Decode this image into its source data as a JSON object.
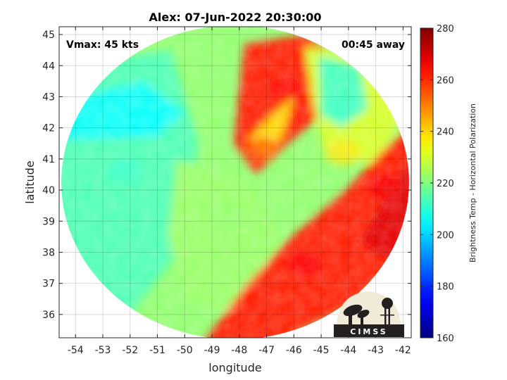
{
  "chart_data": {
    "type": "heatmap",
    "title": "Alex: 07-Jun-2022 20:30:00",
    "xlabel": "longitude",
    "ylabel": "latitude",
    "xlim": [
      -54.6,
      -41.7
    ],
    "ylim": [
      35.25,
      45.25
    ],
    "xticks": [
      -54,
      -53,
      -52,
      -51,
      -50,
      -49,
      -48,
      -47,
      -46,
      -45,
      -44,
      -43,
      -42
    ],
    "yticks": [
      36,
      37,
      38,
      39,
      40,
      41,
      42,
      43,
      44,
      45
    ],
    "grid": true,
    "colorbar": {
      "label": "Brightness Temp - Horizontal Polarization",
      "range": [
        160,
        280
      ],
      "ticks": [
        160,
        180,
        200,
        220,
        240,
        260,
        280
      ],
      "colormap": "jet"
    },
    "annotations": {
      "vmax": "Vmax: 45 kts",
      "away": "00:45 away"
    },
    "swath": {
      "shape": "ellipse",
      "center_lon": -48.15,
      "center_lat": 40.25,
      "lon_radius": 6.37,
      "lat_radius": 5.05
    },
    "features": [
      {
        "name": "warm-land-west",
        "lon": -52.2,
        "lat": 40.6,
        "value": 211
      },
      {
        "name": "warm-band-north",
        "lon": -51.5,
        "lat": 42.2,
        "value": 205
      },
      {
        "name": "warm-northeast",
        "lon": -44.4,
        "lat": 42.6,
        "value": 212
      },
      {
        "name": "moderate-center",
        "lon": -48.5,
        "lat": 39.2,
        "value": 222
      },
      {
        "name": "cold-eye-wall-north",
        "lon": -46.3,
        "lat": 43.3,
        "value": 264
      },
      {
        "name": "cold-spiral-center",
        "lon": -47.2,
        "lat": 41.3,
        "value": 254
      },
      {
        "name": "cold-band-southeast",
        "lon": -45.6,
        "lat": 37.6,
        "value": 265
      },
      {
        "name": "cold-band-east",
        "lon": -42.6,
        "lat": 40.1,
        "value": 266
      },
      {
        "name": "moderate-east-gap",
        "lon": -44.2,
        "lat": 41.2,
        "value": 238
      }
    ]
  },
  "logo": {
    "text": "CIMSS"
  }
}
